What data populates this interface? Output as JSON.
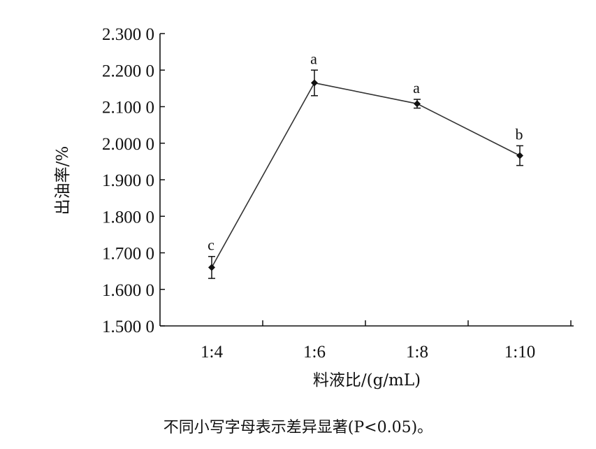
{
  "chart_data": {
    "type": "line",
    "categories": [
      "1:4",
      "1:6",
      "1:8",
      "1:10"
    ],
    "values": [
      1.66,
      2.165,
      2.108,
      1.966
    ],
    "errors": [
      0.03,
      0.035,
      0.012,
      0.027
    ],
    "significance_labels": [
      "c",
      "a",
      "a",
      "b"
    ],
    "ylim": [
      1.5,
      2.3
    ],
    "ytick_values": [
      1.5,
      1.6,
      1.7,
      1.8,
      1.9,
      2.0,
      2.1,
      2.2,
      2.3
    ],
    "ytick_labels": [
      "1.500 0",
      "1.600 0",
      "1.700 0",
      "1.800 0",
      "1.900 0",
      "2.000 0",
      "2.100 0",
      "2.200 0",
      "2.300 0"
    ],
    "xlabel": "料液比/(g/mL)",
    "ylabel": "出油率/%",
    "grid": false,
    "marker": "diamond",
    "line_color": "#333333"
  },
  "caption": "不同小写字母表示差异显著(P<0.05)。"
}
